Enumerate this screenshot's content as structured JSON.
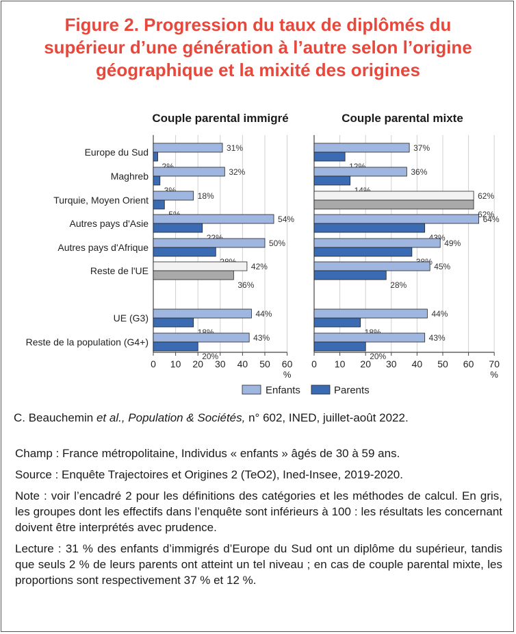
{
  "title_lines": [
    "Figure 2. Progression du taux de diplômés du",
    "supérieur d’une génération à l’autre selon l’origine",
    "géographique et la mixité des origines"
  ],
  "chart_data": [
    {
      "type": "bar",
      "title": "Couple parental immigré",
      "categories": [
        "Europe du Sud",
        "Maghreb",
        "Turquie, Moyen Orient",
        "Autres pays d'Asie",
        "Autres pays d'Afrique",
        "Reste de l'UE",
        "UE (G3)",
        "Reste de la population (G4+)"
      ],
      "series": [
        {
          "name": "Enfants",
          "values": [
            31,
            32,
            18,
            54,
            50,
            42,
            44,
            43
          ],
          "labels": [
            "31%",
            "32%",
            "18%",
            "54%",
            "50%",
            "42%",
            "44%",
            "43%"
          ]
        },
        {
          "name": "Parents",
          "values": [
            2,
            3,
            5,
            22,
            28,
            36,
            18,
            20
          ],
          "labels": [
            "2%",
            "3%",
            "5%",
            "22%",
            "28%",
            "36%",
            "18%",
            "20%"
          ]
        }
      ],
      "gray_categories": [
        "Reste de l'UE"
      ],
      "xlim": [
        0,
        60
      ],
      "xticks": [
        "0",
        "10",
        "20",
        "30",
        "40",
        "50",
        "60"
      ],
      "xlabel": "%"
    },
    {
      "type": "bar",
      "title": "Couple parental mixte",
      "categories": [
        "Europe du Sud",
        "Maghreb",
        "Turquie, Moyen Orient",
        "Autres pays d'Asie",
        "Autres pays d'Afrique",
        "Reste de l'UE",
        "UE (G3)",
        "Reste de la population (G4+)"
      ],
      "series": [
        {
          "name": "Enfants",
          "values": [
            37,
            36,
            62,
            64,
            49,
            45,
            44,
            43
          ],
          "labels": [
            "37%",
            "36%",
            "62%",
            "64%",
            "49%",
            "45%",
            "44%",
            "43%"
          ]
        },
        {
          "name": "Parents",
          "values": [
            12,
            14,
            62,
            43,
            38,
            28,
            18,
            20
          ],
          "labels": [
            "12%",
            "14%",
            "62%",
            "43%",
            "38%",
            "28%",
            "18%",
            "20%"
          ]
        }
      ],
      "gray_categories": [
        "Turquie, Moyen Orient"
      ],
      "xlim": [
        0,
        70
      ],
      "xticks": [
        "0",
        "10",
        "20",
        "30",
        "40",
        "50",
        "60",
        "70"
      ],
      "xlabel": "%"
    }
  ],
  "legend": {
    "enfants": "Enfants",
    "parents": "Parents"
  },
  "colors": {
    "enfants": "#9fb6e0",
    "parents": "#3a6bb3",
    "gray_enfants": "#f2f2f2",
    "gray_parents": "#a9a9a9",
    "title": "#e8473b"
  },
  "credit": {
    "authors": "C. Beauchemin",
    "etal": "et al.,",
    "journal": "Population & Sociétés,",
    "rest": "n° 602, INED, juillet-août 2022."
  },
  "notes": {
    "champ": "Champ : France métropolitaine, Individus « enfants » âgés de 30 à 59 ans.",
    "source": "Source : Enquête Trajectoires et Origines 2 (TeO2), Ined-Insee, 2019-2020.",
    "note": "Note : voir l’encadré 2 pour les définitions des catégories et les méthodes de calcul. En gris, les groupes dont les effectifs dans l’enquête sont inférieurs à 100 : les résultats les concernant doivent être interprétés avec prudence.",
    "lecture": "Lecture : 31 % des enfants d’immigrés d’Europe du Sud ont un diplôme du supérieur, tandis que seuls 2 % de leurs parents ont atteint un tel niveau ; en cas de couple parental mixte, les proportions sont respectivement 37 % et 12 %."
  }
}
